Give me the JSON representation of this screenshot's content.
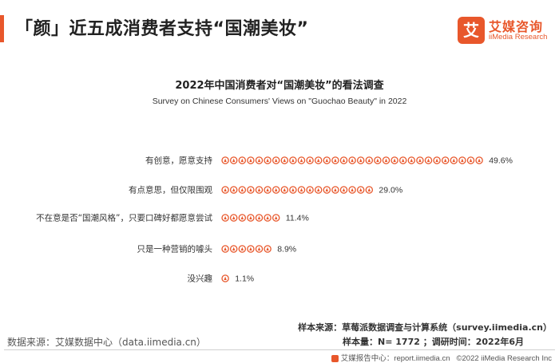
{
  "header": {
    "title": "「颜」近五成消费者支持“国潮美妆”",
    "accent_color": "#e8572b"
  },
  "logo": {
    "mark": "艾",
    "name_cn": "艾媒咨询",
    "name_en": "iiMedia Research"
  },
  "chart_data": {
    "type": "bar",
    "title": "2022年中国消费者对“国潮美妆”的看法调查",
    "subtitle": "Survey on Chinese Consumers' Views on \"Guochao Beauty\" in 2022",
    "categories": [
      "有创意，愿意支持",
      "有点意思，但仅限围观",
      "不在意是否“国潮风格”，只要口碑好都愿意尝试",
      "只是一种营销的噱头",
      "没兴趣"
    ],
    "values": [
      49.6,
      29.0,
      11.4,
      8.9,
      1.1
    ],
    "value_labels": [
      "49.6%",
      "29.0%",
      "11.4%",
      "8.9%",
      "1.1%"
    ],
    "unit": "%",
    "xlim": [
      0,
      50
    ],
    "mark_style": "pictogram",
    "grid": false,
    "legend": "none",
    "bar_color": "#e8572b"
  },
  "footer": {
    "source": "数据来源：艾媒数据中心（data.iimedia.cn）",
    "sample_source": "样本来源：草莓派数据调查与计算系统（survey.iimedia.cn）",
    "sample_size": "样本量：N= 1772 ；调研时间：2022年6月",
    "report_site": "艾媒报告中心：report.iimedia.cn",
    "copyright": "©2022  iiMedia Research  Inc"
  }
}
